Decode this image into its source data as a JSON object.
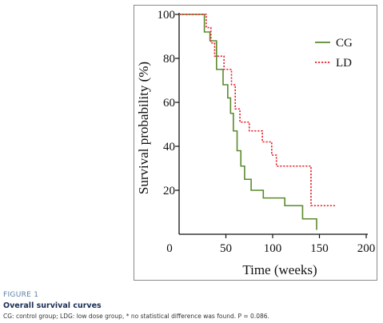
{
  "figure": {
    "label": "FIGURE 1",
    "title": "Overall survival curves",
    "caption": "CG: control group; LDG: low dose group, * no statistical difference was found. P = 0.086."
  },
  "chart_data": {
    "type": "line",
    "step": true,
    "title": "",
    "xlabel": "Time (weeks)",
    "ylabel": "Survival probability (%)",
    "xlim": [
      0,
      200
    ],
    "ylim": [
      0,
      100
    ],
    "xticks": [
      0,
      50,
      100,
      150,
      200
    ],
    "yticks": [
      20,
      40,
      60,
      80,
      100
    ],
    "legend_position": "top-right",
    "series": [
      {
        "name": "CG",
        "color": "#5a8a2e",
        "style": "solid",
        "x": [
          0,
          23,
          27,
          33,
          40,
          47,
          52,
          55,
          58,
          62,
          66,
          70,
          77,
          90,
          113,
          132,
          147
        ],
        "y": [
          100,
          100,
          92,
          88,
          75,
          68,
          62,
          55,
          47,
          38,
          31,
          25,
          20,
          16.5,
          13,
          7,
          2
        ]
      },
      {
        "name": "LD",
        "color": "#e8242c",
        "style": "dotted",
        "x": [
          0,
          25,
          29,
          34,
          38,
          48,
          56,
          60,
          65,
          75,
          89,
          99,
          104,
          141,
          168
        ],
        "y": [
          100,
          100,
          94,
          87,
          81,
          75,
          68,
          57,
          51,
          47,
          42,
          36,
          31,
          13,
          13
        ]
      }
    ]
  }
}
